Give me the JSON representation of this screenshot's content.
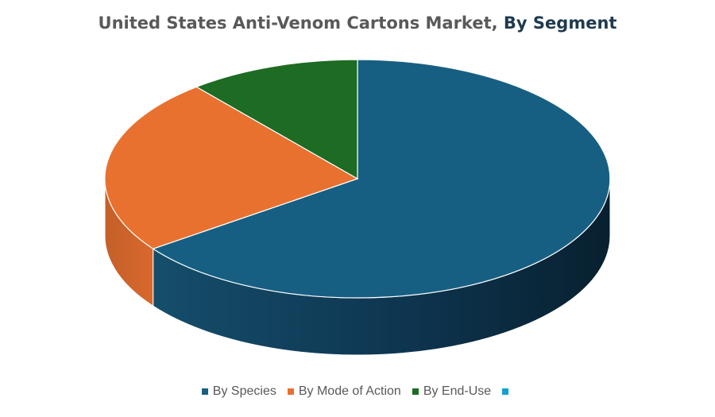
{
  "title": {
    "part1": "United States Anti-Venom Cartons Market",
    "sep": ", ",
    "part2": "By Segment"
  },
  "chart_data": {
    "type": "pie",
    "style": "3d",
    "series": [
      {
        "name": "By Species",
        "value": 65,
        "color": "#175f82"
      },
      {
        "name": "By Mode of Action",
        "value": 24,
        "color": "#e87130"
      },
      {
        "name": "By End-Use",
        "value": 11,
        "color": "#1e6b23"
      },
      {
        "name": "",
        "value": 0,
        "color": "#11a3d0"
      }
    ],
    "legend_position": "bottom"
  }
}
